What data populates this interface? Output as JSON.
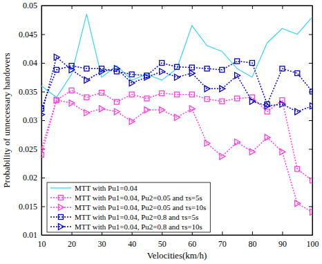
{
  "chart_data": {
    "type": "line",
    "x_label": "Velocities(km/h)",
    "y_label": "Probability of unnecessary handovers",
    "x": [
      10,
      15,
      20,
      25,
      30,
      35,
      40,
      45,
      50,
      55,
      60,
      65,
      70,
      75,
      80,
      85,
      90,
      95,
      100
    ],
    "xlim": [
      10,
      100
    ],
    "xticks": [
      10,
      20,
      30,
      40,
      50,
      60,
      70,
      80,
      90,
      100
    ],
    "ylim": [
      0.01,
      0.05
    ],
    "yticks": [
      0.01,
      0.015,
      0.02,
      0.025,
      0.03,
      0.035,
      0.04,
      0.045,
      0.05
    ],
    "grid": false,
    "legend": "lower left",
    "series": [
      {
        "name": "MTT with Pu1=0.04",
        "color": "#33d6f0",
        "marker": "none",
        "line_style": "solid",
        "values": [
          0.036,
          0.034,
          0.038,
          0.0485,
          0.0375,
          0.0395,
          0.037,
          0.038,
          0.037,
          0.039,
          0.0465,
          0.043,
          0.042,
          0.039,
          0.0375,
          0.0435,
          0.046,
          0.045,
          0.048
        ]
      },
      {
        "name": "MTT with Pu1=0.04, Pu2=0.05 and τs=5s",
        "color": "#ff3ce0",
        "marker": "square",
        "line_style": "dotted",
        "values": [
          0.024,
          0.0335,
          0.0352,
          0.034,
          0.0348,
          0.0332,
          0.0345,
          0.0338,
          0.0347,
          0.0345,
          0.0345,
          0.0337,
          0.0333,
          0.0338,
          0.034,
          0.0315,
          0.0335,
          0.0215,
          0.0195
        ]
      },
      {
        "name": "MTT with Pu1=0.04, Pu2=0.05 and τs=10s",
        "color": "#ff3ce0",
        "marker": "triangle",
        "line_style": "dotted",
        "values": [
          0.025,
          0.0335,
          0.033,
          0.0313,
          0.032,
          0.0315,
          0.0298,
          0.0318,
          0.0318,
          0.0305,
          0.032,
          0.026,
          0.0237,
          0.0262,
          0.0245,
          0.027,
          0.0245,
          0.0155,
          0.014
        ]
      },
      {
        "name": "MTT with Pu1=0.04, Pu2=0.8 and τs=5s",
        "color": "#0000cc",
        "marker": "square",
        "line_style": "dotted",
        "values": [
          0.032,
          0.0388,
          0.0395,
          0.039,
          0.039,
          0.0385,
          0.038,
          0.0378,
          0.04,
          0.0393,
          0.0392,
          0.039,
          0.0388,
          0.0403,
          0.04,
          0.0328,
          0.039,
          0.0382,
          0.035
        ]
      },
      {
        "name": "MTT with Pu1=0.04, Pu2=0.8 and τs=10s",
        "color": "#0000cc",
        "marker": "triangle",
        "line_style": "dotted",
        "values": [
          0.031,
          0.041,
          0.0388,
          0.037,
          0.0385,
          0.039,
          0.0365,
          0.0375,
          0.0385,
          0.0375,
          0.0382,
          0.0355,
          0.0355,
          0.0378,
          0.0333,
          0.0325,
          0.0328,
          0.0315,
          0.0325
        ]
      }
    ]
  }
}
